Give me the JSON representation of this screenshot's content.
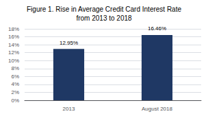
{
  "chart_data": {
    "type": "bar",
    "title": "Figure 1. Rise in Average Credit Card Interest Rate\nfrom 2013 to 2018",
    "categories": [
      "2013",
      "August 2018"
    ],
    "values": [
      12.95,
      16.46
    ],
    "value_labels": [
      "12.95%",
      "16.46%"
    ],
    "data_labels": true,
    "color": "#1F3864",
    "ylim": [
      0,
      18
    ],
    "yticks": [
      {
        "value": 0,
        "label": "0%"
      },
      {
        "value": 2,
        "label": "2%"
      },
      {
        "value": 4,
        "label": "4%"
      },
      {
        "value": 6,
        "label": "6%"
      },
      {
        "value": 8,
        "label": "8%"
      },
      {
        "value": 10,
        "label": "10%"
      },
      {
        "value": 12,
        "label": "12%"
      },
      {
        "value": 14,
        "label": "14%"
      },
      {
        "value": 16,
        "label": "16%"
      },
      {
        "value": 18,
        "label": "18%"
      }
    ],
    "grid": true
  }
}
